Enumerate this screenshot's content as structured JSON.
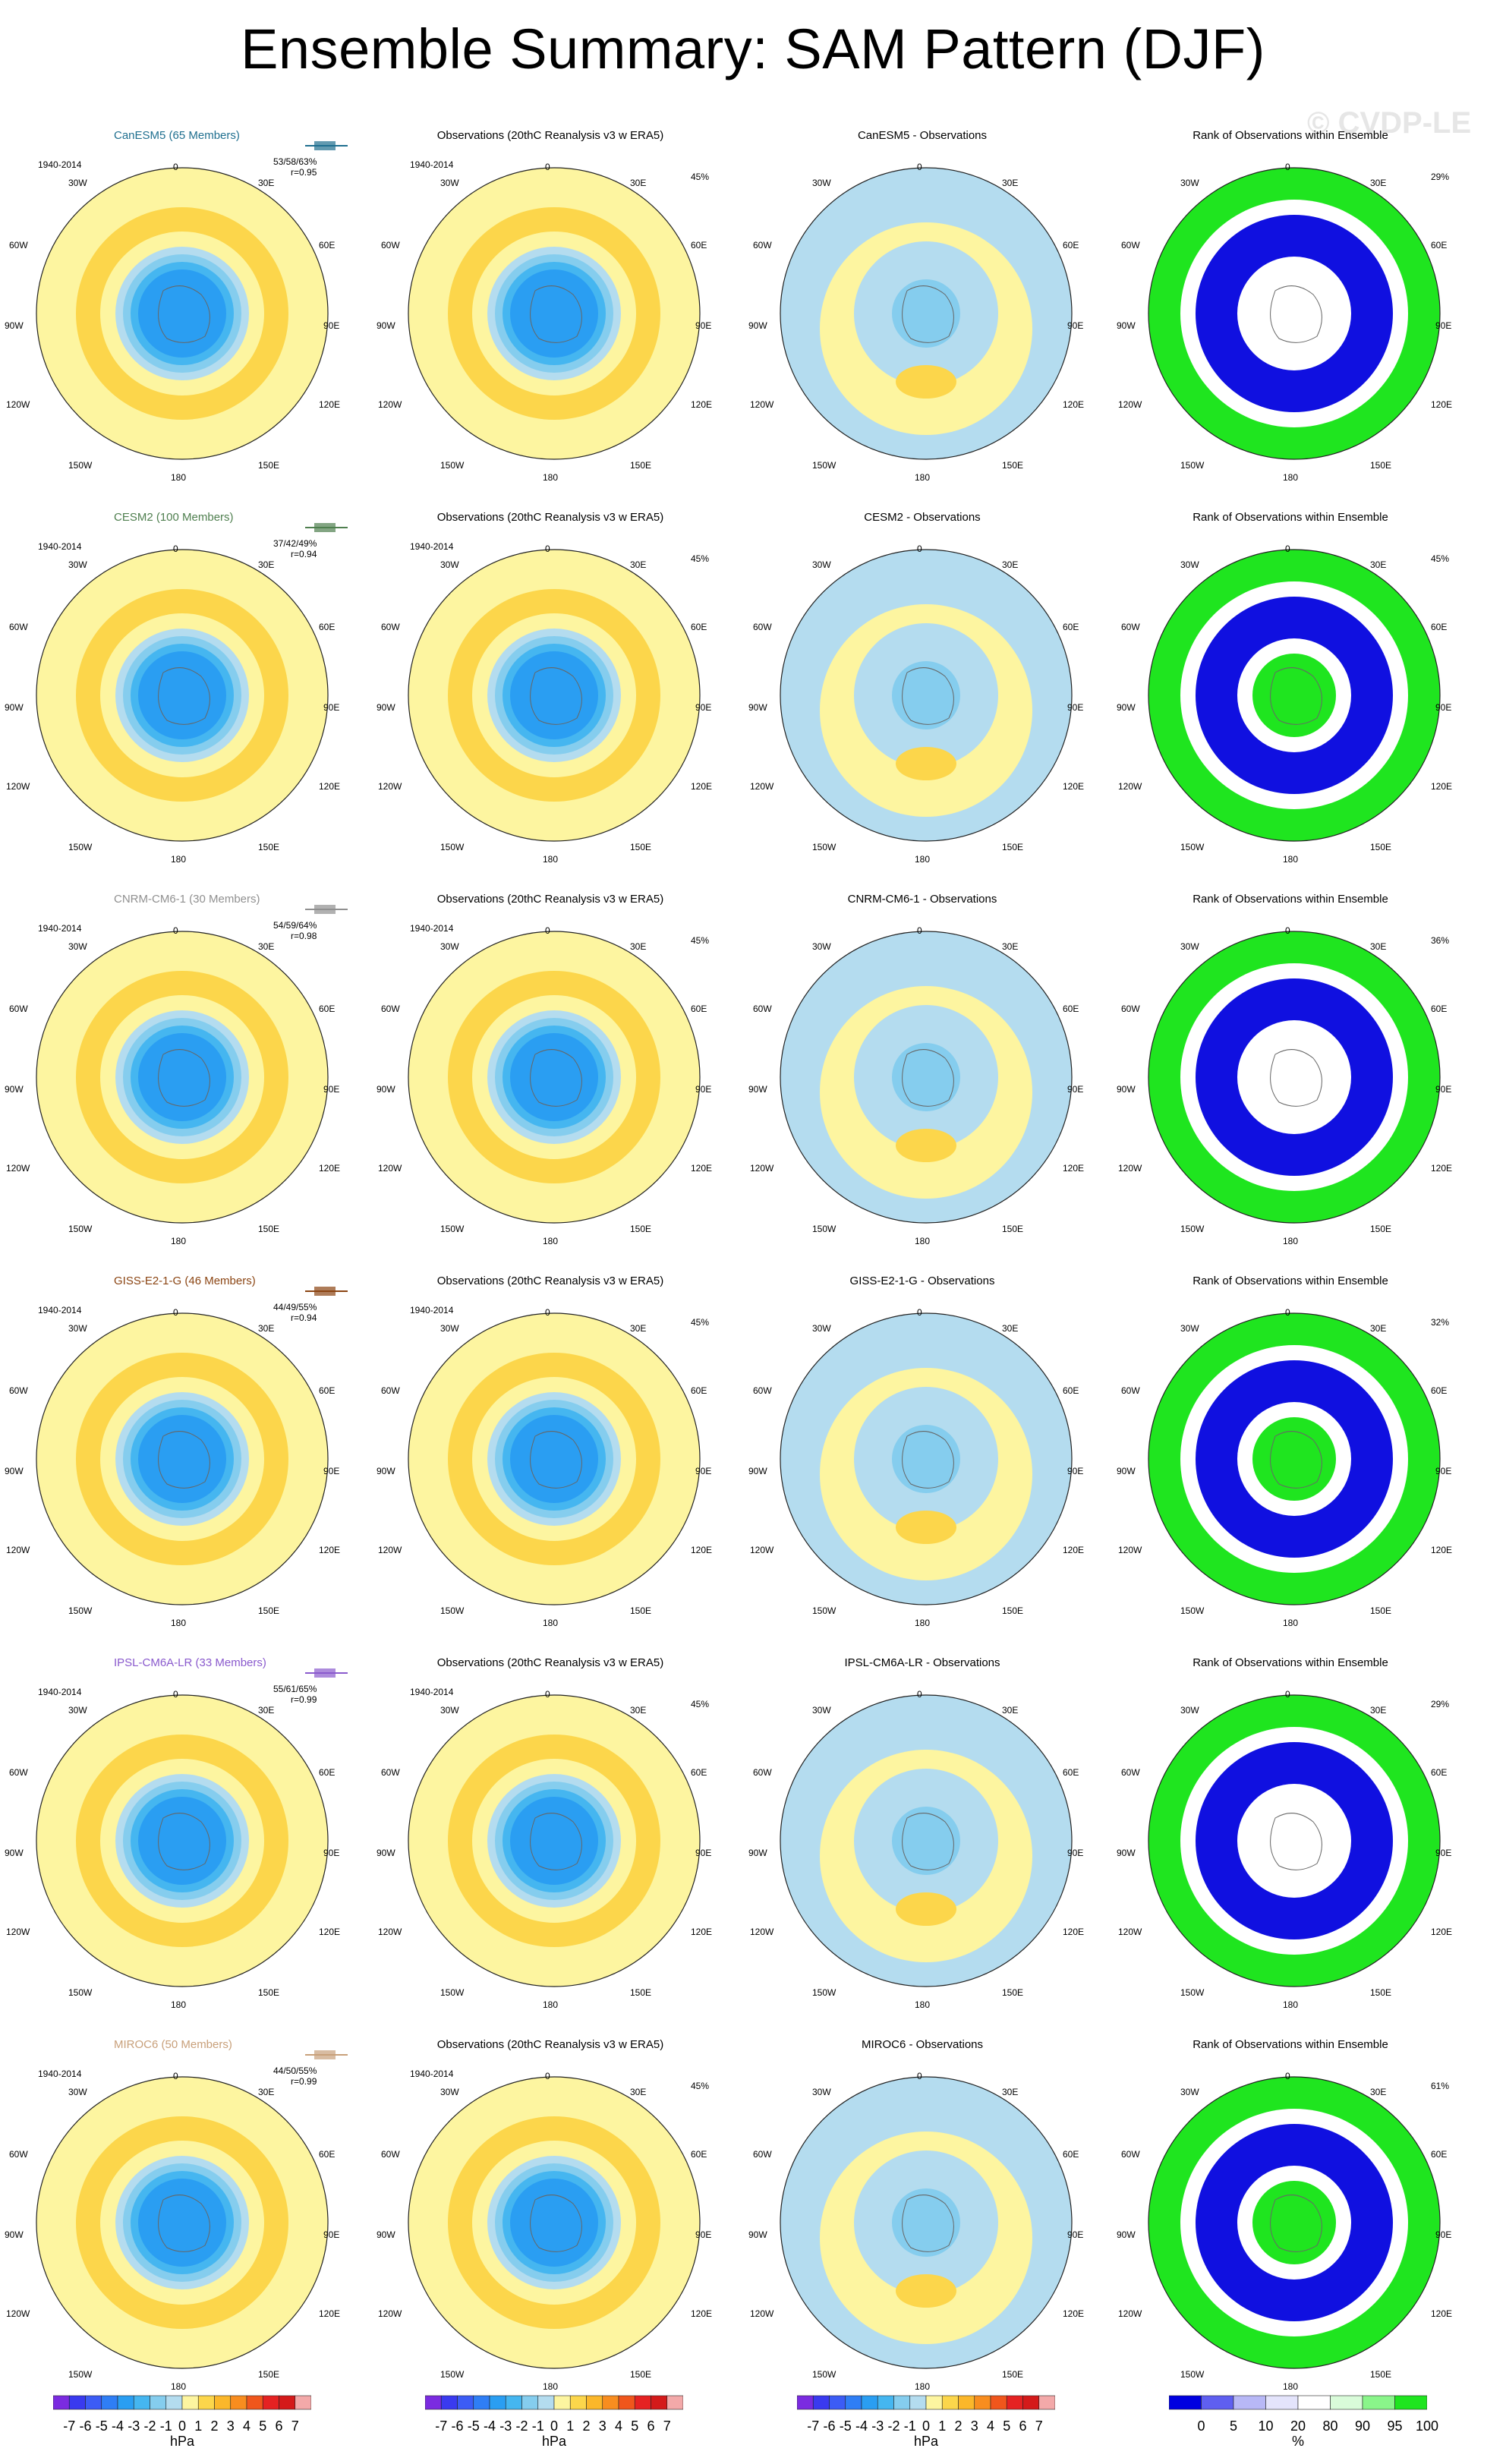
{
  "title": "Ensemble Summary: SAM Pattern (DJF)",
  "watermark": "© CVDP-LE",
  "period": "1940-2014",
  "obs_title": "Observations (20thC Reanalysis v3 w ERA5)",
  "rank_title": "Rank of Observations within Ensemble",
  "lon_labels": {
    "top": "0",
    "bottom": "180",
    "left": "90W",
    "right": "90E",
    "tl": "30W",
    "tr": "30E",
    "ul": "60W",
    "ur": "60E",
    "ll": "120W",
    "lr": "120E",
    "bl": "150W",
    "br": "150E"
  },
  "rows": [
    {
      "model": "CanESM5",
      "title": "CanESM5 (65 Members)",
      "color": "#1f6f8f",
      "stats": "53/58/63%",
      "r": "r=0.95",
      "obs_pct": "45%",
      "diff_title": "CanESM5 - Observations",
      "rank_pct": "29%"
    },
    {
      "model": "CESM2",
      "title": "CESM2 (100 Members)",
      "color": "#4f7f4f",
      "stats": "37/42/49%",
      "r": "r=0.94",
      "obs_pct": "45%",
      "diff_title": "CESM2 - Observations",
      "rank_pct": "45%"
    },
    {
      "model": "CNRM-CM6-1",
      "title": "CNRM-CM6-1 (30 Members)",
      "color": "#909090",
      "stats": "54/59/64%",
      "r": "r=0.98",
      "obs_pct": "45%",
      "diff_title": "CNRM-CM6-1 - Observations",
      "rank_pct": "36%"
    },
    {
      "model": "GISS-E2-1-G",
      "title": "GISS-E2-1-G (46 Members)",
      "color": "#8b4513",
      "stats": "44/49/55%",
      "r": "r=0.94",
      "obs_pct": "45%",
      "diff_title": "GISS-E2-1-G - Observations",
      "rank_pct": "32%"
    },
    {
      "model": "IPSL-CM6A-LR",
      "title": "IPSL-CM6A-LR (33 Members)",
      "color": "#8a5acd",
      "stats": "55/61/65%",
      "r": "r=0.99",
      "obs_pct": "45%",
      "diff_title": "IPSL-CM6A-LR - Observations",
      "rank_pct": "29%"
    },
    {
      "model": "MIROC6",
      "title": "MIROC6 (50 Members)",
      "color": "#c8a07a",
      "stats": "44/50/55%",
      "r": "r=0.99",
      "obs_pct": "45%",
      "diff_title": "MIROC6 - Observations",
      "rank_pct": "61%"
    }
  ],
  "colorbar_hpa": {
    "ticks": [
      "-7",
      "-6",
      "-5",
      "-4",
      "-3",
      "-2",
      "-1",
      "0",
      "1",
      "2",
      "3",
      "4",
      "5",
      "6",
      "7"
    ],
    "unit": "hPa",
    "colors": [
      "#7b2be0",
      "#3a3aef",
      "#3c5cf5",
      "#2f7ef5",
      "#2a9ef2",
      "#45b6f0",
      "#85cdee",
      "#b4dcef",
      "#fdf5a0",
      "#fcd64b",
      "#fbb72a",
      "#f88d1f",
      "#f0561c",
      "#e52222",
      "#d41a1a",
      "#f3a9a9"
    ]
  },
  "colorbar_rank": {
    "ticks": [
      "0",
      "5",
      "10",
      "20",
      "80",
      "90",
      "95",
      "100"
    ],
    "unit": "%",
    "colors": [
      "#0000e0",
      "#5f5ff0",
      "#b8b8f6",
      "#e4e4fb",
      "#ffffff",
      "#d9fbd9",
      "#8af58a",
      "#1fe51f"
    ]
  }
}
